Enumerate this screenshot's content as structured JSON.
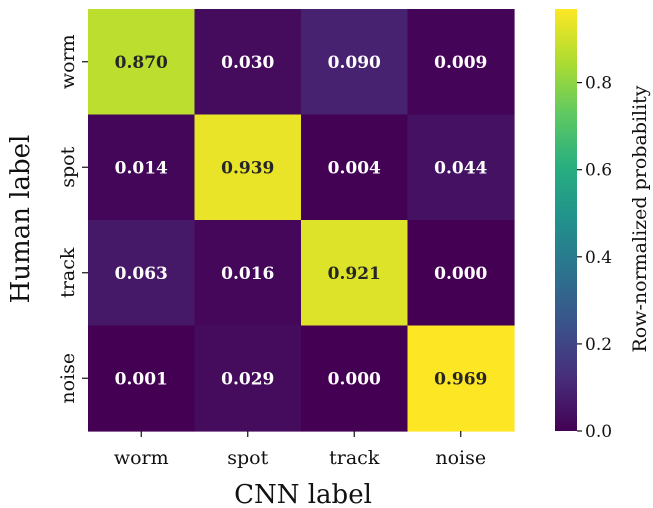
{
  "chart_data": {
    "type": "heatmap",
    "xlabel": "CNN label",
    "ylabel": "Human label",
    "x_categories": [
      "worm",
      "spot",
      "track",
      "noise"
    ],
    "y_categories": [
      "worm",
      "spot",
      "track",
      "noise"
    ],
    "values": [
      [
        0.87,
        0.03,
        0.09,
        0.009
      ],
      [
        0.014,
        0.939,
        0.004,
        0.044
      ],
      [
        0.063,
        0.016,
        0.921,
        0.0
      ],
      [
        0.001,
        0.029,
        0.0,
        0.969
      ]
    ],
    "value_labels": [
      [
        "0.870",
        "0.030",
        "0.090",
        "0.009"
      ],
      [
        "0.014",
        "0.939",
        "0.004",
        "0.044"
      ],
      [
        "0.063",
        "0.016",
        "0.921",
        "0.000"
      ],
      [
        "0.001",
        "0.029",
        "0.000",
        "0.969"
      ]
    ],
    "colorbar": {
      "label": "Row-normalized probability",
      "colormap": "viridis",
      "range": [
        0.0,
        0.969
      ],
      "ticks": [
        0.0,
        0.2,
        0.4,
        0.6,
        0.8
      ],
      "tick_labels": [
        "0.0",
        "0.2",
        "0.4",
        "0.6",
        "0.8"
      ]
    }
  }
}
